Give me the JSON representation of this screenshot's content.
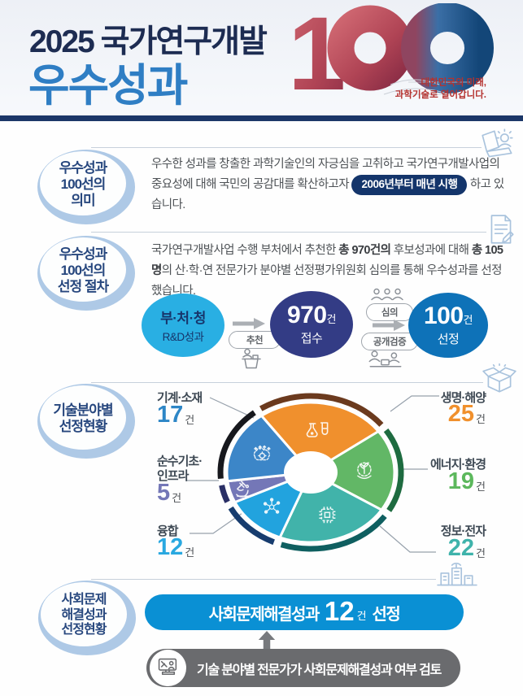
{
  "header": {
    "title_line1": "2025 국가연구개발",
    "title_line2": "우수성과",
    "logo_number": "100",
    "logo_digit": "1",
    "tagline_line1": "대한민국의 미래,",
    "tagline_line2": "과학기술로 열어갑니다.",
    "logo_colors": {
      "red": "#B8404F",
      "blue": "#1D4E85"
    }
  },
  "meaning_section": {
    "badge_lines": [
      "우수성과",
      "100선의",
      "의미"
    ],
    "body_before": "우수한 성과를 창출한 과학기술인의 자긍심을 고취하고 국가연구개발사업의 중요성에 대해 국민의 공감대를 확산하고자",
    "highlight_pill": "2006년부터 매년 시행",
    "body_after": "하고 있습니다.",
    "corner_icon": "laptop-user-icon"
  },
  "process_section": {
    "badge_lines": [
      "우수성과",
      "100선의",
      "선정 절차"
    ],
    "body_part1": "국가연구개발사업 수행 부처에서 추천한 ",
    "body_bold1": "총 970건의",
    "body_part2": " 후보성과에 대해 ",
    "body_bold2": "총 105명",
    "body_part3": "의 산·학·연 전문가가 분야별 선정평가위원회 심의를 통해 우수성과를 선정했습니다.",
    "corner_icon": "document-edit-icon",
    "flow": {
      "step1_line1": "부·처·청",
      "step1_line2": "R&D성과",
      "arrow1_label": "추천",
      "step2_number": "970",
      "step2_unit": "건",
      "step2_label": "접수",
      "arrow2_label_top": "심의",
      "arrow2_label_bottom": "공개검증",
      "step3_number": "100",
      "step3_unit": "건",
      "step3_label": "선정",
      "colors": {
        "step1": "#29AFE3",
        "step2": "#333C85",
        "step3": "#0E72B8"
      }
    }
  },
  "tech_section": {
    "badge_lines": [
      "기술분야별",
      "선정현황"
    ],
    "corner_icon": "open-box-icon",
    "labels_left": [
      {
        "name": "기계·소재",
        "value": "17",
        "unit": "건",
        "color": "#2D86C6"
      },
      {
        "name": "순수기초·",
        "name2": "인프라",
        "value": "5",
        "unit": "건",
        "color": "#7477B7"
      },
      {
        "name": "융합",
        "value": "12",
        "unit": "건",
        "color": "#29A8E0"
      }
    ],
    "labels_right": [
      {
        "name": "생명·해양",
        "value": "25",
        "unit": "건",
        "color": "#F0902D"
      },
      {
        "name": "에너지·환경",
        "value": "19",
        "unit": "건",
        "color": "#5CB85C"
      },
      {
        "name": "정보·전자",
        "value": "22",
        "unit": "건",
        "color": "#3FB3AB"
      }
    ]
  },
  "chart_data": {
    "type": "pie",
    "subtype": "donut",
    "title": "기술분야별 선정현황",
    "unit": "건",
    "categories": [
      "생명·해양",
      "에너지·환경",
      "정보·전자",
      "융합",
      "순수기초·인프라",
      "기계·소재"
    ],
    "values": [
      25,
      19,
      22,
      12,
      5,
      17
    ],
    "total": 100,
    "colors": [
      "#F0902D",
      "#62B766",
      "#41B3AA",
      "#22A3DE",
      "#7477B7",
      "#3C86C8"
    ],
    "ring_colors": [
      "#6B3A1E",
      "#1E6B40",
      "#0F5F60",
      "#173C6E",
      "#2A2F66",
      "#17181D"
    ],
    "slice_icons": [
      "lab-flasks-icon",
      "eco-hand-icon",
      "chip-icon",
      "molecule-icon",
      "microscope-icon",
      "machine-brain-icon"
    ],
    "start_angle_deg": -36,
    "legend_position": "around"
  },
  "social_section": {
    "badge_lines": [
      "사회문제",
      "해결성과",
      "선정현황"
    ],
    "corner_icon": "city-network-icon",
    "pill_prefix": "사회문제해결성과",
    "pill_number": "12",
    "pill_unit": "건",
    "pill_suffix": "선정",
    "pill_color": "#0A90D4",
    "note_text": "기술 분야별 전문가가 사회문제해결성과 여부 검토",
    "note_icon": "computer-review-icon",
    "note_bg": "#6A6B6E"
  }
}
